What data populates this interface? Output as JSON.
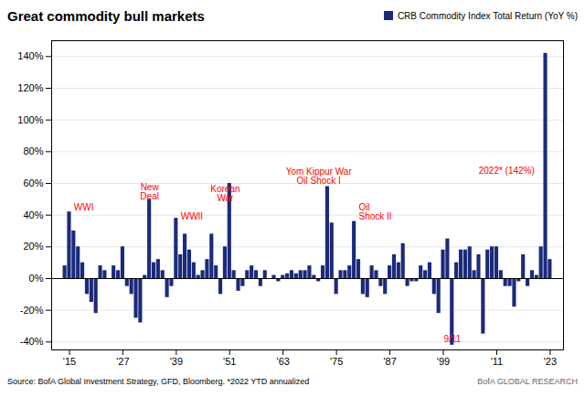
{
  "chart_data": {
    "type": "bar",
    "title": "Great commodity bull markets",
    "caption": "Source:  BofA Global Investment Strategy, GFD, Bloomberg. *2022 YTD annualized",
    "credit": "BofA GLOBAL RESEARCH",
    "legend": "top-right",
    "grid": true,
    "x": [
      1914,
      1915,
      1916,
      1917,
      1918,
      1919,
      1920,
      1921,
      1922,
      1923,
      1924,
      1925,
      1926,
      1927,
      1928,
      1929,
      1930,
      1931,
      1932,
      1933,
      1934,
      1935,
      1936,
      1937,
      1938,
      1939,
      1940,
      1941,
      1942,
      1943,
      1944,
      1945,
      1946,
      1947,
      1948,
      1949,
      1950,
      1951,
      1952,
      1953,
      1954,
      1955,
      1956,
      1957,
      1958,
      1959,
      1960,
      1961,
      1962,
      1963,
      1964,
      1965,
      1966,
      1967,
      1968,
      1969,
      1970,
      1971,
      1972,
      1973,
      1974,
      1975,
      1976,
      1977,
      1978,
      1979,
      1980,
      1981,
      1982,
      1983,
      1984,
      1985,
      1986,
      1987,
      1988,
      1989,
      1990,
      1991,
      1992,
      1993,
      1994,
      1995,
      1996,
      1997,
      1998,
      1999,
      2000,
      2001,
      2002,
      2003,
      2004,
      2005,
      2006,
      2007,
      2008,
      2009,
      2010,
      2011,
      2012,
      2013,
      2014,
      2015,
      2016,
      2017,
      2018,
      2019,
      2020,
      2021,
      2022,
      2023
    ],
    "series": [
      {
        "name": "CRB Commodity Index Total Return (YoY %)",
        "color": "#1b2a7b",
        "values": [
          8,
          42,
          30,
          20,
          10,
          -10,
          -15,
          -22,
          8,
          5,
          0,
          8,
          5,
          20,
          -5,
          -10,
          -25,
          -28,
          2,
          50,
          10,
          12,
          5,
          -12,
          -5,
          38,
          15,
          28,
          18,
          10,
          2,
          5,
          12,
          28,
          8,
          -10,
          20,
          60,
          5,
          -8,
          -5,
          5,
          8,
          5,
          -5,
          5,
          0,
          2,
          -2,
          2,
          3,
          5,
          3,
          5,
          5,
          8,
          2,
          -2,
          8,
          58,
          35,
          -10,
          5,
          5,
          8,
          36,
          12,
          -10,
          -12,
          8,
          5,
          -5,
          -10,
          8,
          15,
          10,
          22,
          -5,
          -2,
          -2,
          8,
          5,
          10,
          -10,
          -22,
          18,
          25,
          -42,
          10,
          18,
          18,
          20,
          5,
          15,
          -35,
          18,
          20,
          20,
          5,
          -5,
          -5,
          -18,
          -2,
          15,
          -5,
          5,
          2,
          20,
          142,
          12
        ]
      }
    ],
    "xlim": [
      1911,
      2026
    ],
    "xticks": [
      {
        "value": 1915,
        "label": "'15"
      },
      {
        "value": 1927,
        "label": "'27"
      },
      {
        "value": 1939,
        "label": "'39"
      },
      {
        "value": 1951,
        "label": "'51"
      },
      {
        "value": 1963,
        "label": "'63"
      },
      {
        "value": 1975,
        "label": "'75"
      },
      {
        "value": 1987,
        "label": "'87"
      },
      {
        "value": 1999,
        "label": "'99"
      },
      {
        "value": 2011,
        "label": "'11"
      },
      {
        "value": 2023,
        "label": "'23"
      }
    ],
    "ylim": [
      -45,
      150
    ],
    "yticks": [
      {
        "value": -40,
        "label": "-40%"
      },
      {
        "value": -20,
        "label": "-20%"
      },
      {
        "value": 0,
        "label": "0%"
      },
      {
        "value": 20,
        "label": "20%"
      },
      {
        "value": 40,
        "label": "40%"
      },
      {
        "value": 60,
        "label": "60%"
      },
      {
        "value": 80,
        "label": "80%"
      },
      {
        "value": 100,
        "label": "100%"
      },
      {
        "value": 120,
        "label": "120%"
      },
      {
        "value": 140,
        "label": "140%"
      }
    ],
    "annotations": [
      {
        "text": "WWI",
        "x": 1916,
        "y": 43,
        "color": "red"
      },
      {
        "text": "New\nDeal",
        "x": 1933,
        "y": 50,
        "color": "red"
      },
      {
        "text": "WWII",
        "x": 1940,
        "y": 37,
        "color": "red"
      },
      {
        "text": "Korean\nWar",
        "x": 1950,
        "y": 49,
        "color": "red"
      },
      {
        "text": "Yom Kippur War\nOil Shock I",
        "x": 1971,
        "y": 60,
        "color": "red"
      },
      {
        "text": "Oil\nShock II",
        "x": 1980,
        "y": 37,
        "color": "red"
      },
      {
        "text": "9/11",
        "x": 2001,
        "y": -36,
        "color": "red"
      },
      {
        "text": "2022* (142%)",
        "x": 2019.5,
        "y": 66,
        "color": "red"
      }
    ]
  }
}
